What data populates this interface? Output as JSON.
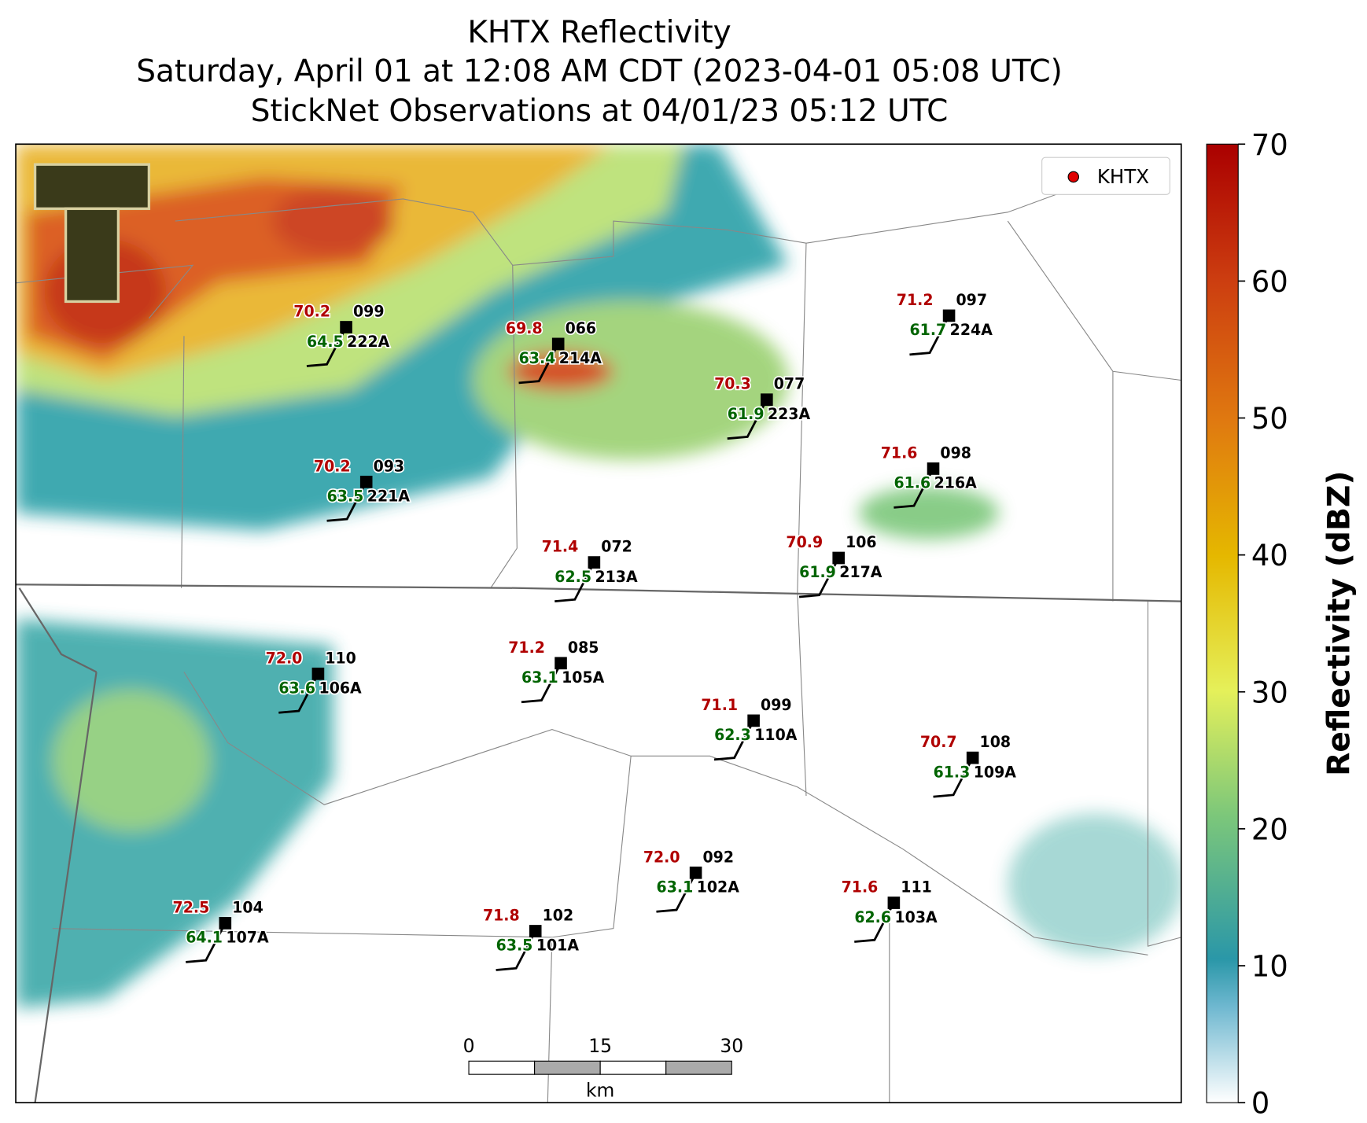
{
  "title": [
    "KHTX Reflectivity",
    "Saturday, April 01 at 12:08 AM CDT (2023-04-01 05:08 UTC)",
    "StickNet Observations at 04/01/23 05:12 UTC"
  ],
  "legend": "KHTX",
  "colorbar": {
    "label": "Reflectivity (dBZ)",
    "ylim": [
      0,
      70
    ],
    "yticks": [
      0,
      10,
      20,
      30,
      40,
      50,
      60,
      70
    ]
  },
  "scale_bar": {
    "ticks": [
      "0",
      "15",
      "30"
    ],
    "unit": "km"
  },
  "stations": [
    {
      "id": "222A",
      "temp": "70.2",
      "dewpoint": "64.5",
      "wind": "099"
    },
    {
      "id": "214A",
      "temp": "69.8",
      "dewpoint": "63.4",
      "wind": "066"
    },
    {
      "id": "223A",
      "temp": "70.3",
      "dewpoint": "61.9",
      "wind": "077"
    },
    {
      "id": "224A",
      "temp": "71.2",
      "dewpoint": "61.7",
      "wind": "097"
    },
    {
      "id": "221A",
      "temp": "70.2",
      "dewpoint": "63.5",
      "wind": "093"
    },
    {
      "id": "216A",
      "temp": "71.6",
      "dewpoint": "61.6",
      "wind": "098"
    },
    {
      "id": "213A",
      "temp": "71.4",
      "dewpoint": "62.5",
      "wind": "072"
    },
    {
      "id": "217A",
      "temp": "70.9",
      "dewpoint": "61.9",
      "wind": "106"
    },
    {
      "id": "106A",
      "temp": "72.0",
      "dewpoint": "63.6",
      "wind": "110"
    },
    {
      "id": "105A",
      "temp": "71.2",
      "dewpoint": "63.1",
      "wind": "085"
    },
    {
      "id": "110A",
      "temp": "71.1",
      "dewpoint": "62.3",
      "wind": "099"
    },
    {
      "id": "109A",
      "temp": "70.7",
      "dewpoint": "61.3",
      "wind": "108"
    },
    {
      "id": "102A",
      "temp": "72.0",
      "dewpoint": "63.1",
      "wind": "092"
    },
    {
      "id": "103A",
      "temp": "71.6",
      "dewpoint": "62.6",
      "wind": "111"
    },
    {
      "id": "107A",
      "temp": "72.5",
      "dewpoint": "64.1",
      "wind": "104"
    },
    {
      "id": "101A",
      "temp": "71.8",
      "dewpoint": "63.5",
      "wind": "102"
    }
  ]
}
